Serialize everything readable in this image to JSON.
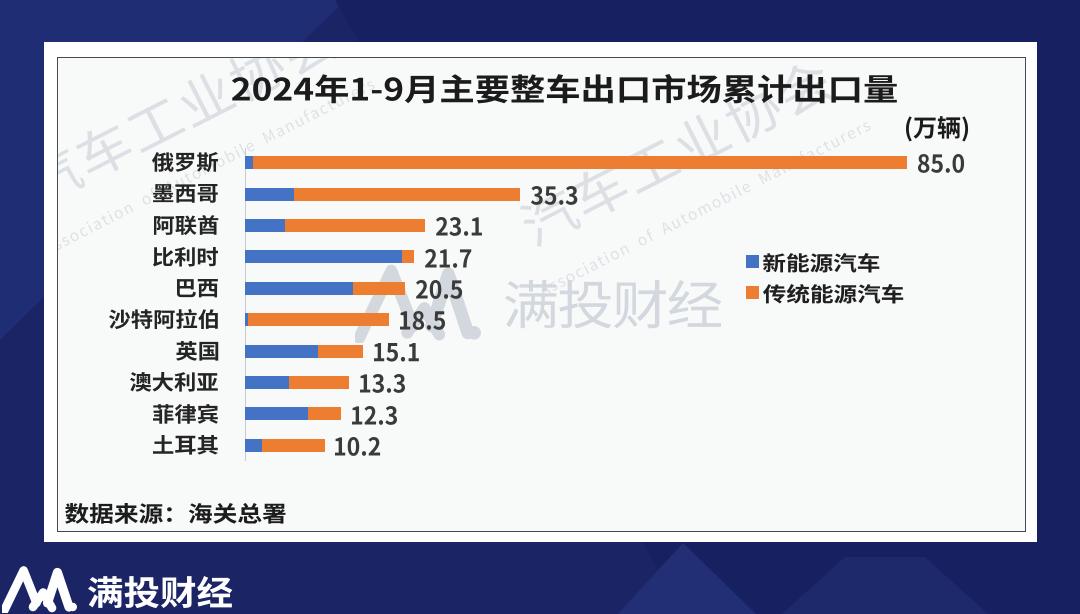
{
  "page": {
    "background_color": "#1b2465",
    "card_color": "#ffffff"
  },
  "chart_data": {
    "type": "bar",
    "orientation": "horizontal",
    "stacked": true,
    "title": "2024年1-9月主要整车出口市场累计出口量",
    "unit_label": "(万辆)",
    "categories": [
      "俄罗斯",
      "墨西哥",
      "阿联酋",
      "比利时",
      "巴西",
      "沙特阿拉伯",
      "英国",
      "澳大利亚",
      "菲律宾",
      "土耳其"
    ],
    "totals": [
      85.0,
      35.3,
      23.1,
      21.7,
      20.5,
      18.5,
      15.1,
      13.3,
      12.3,
      10.2
    ],
    "total_labels": [
      "85.0",
      "35.3",
      "23.1",
      "21.7",
      "20.5",
      "18.5",
      "15.1",
      "13.3",
      "12.3",
      "10.2"
    ],
    "series_names": [
      "新能源汽车",
      "传统能源汽车"
    ],
    "series": [
      {
        "name": "新能源汽车",
        "color": "#4472c4",
        "values": [
          1.0,
          6.2,
          5.1,
          20.1,
          13.8,
          0.4,
          9.3,
          5.6,
          8.0,
          2.2
        ]
      },
      {
        "name": "传统能源汽车",
        "color": "#ed7d31",
        "values": [
          84.0,
          29.1,
          18.0,
          1.6,
          6.7,
          18.1,
          5.8,
          7.7,
          4.3,
          8.0
        ]
      }
    ],
    "xlim": [
      0,
      90
    ],
    "grid": false,
    "legend_position": "right-middle"
  },
  "source_note": "数据来源：海关总署",
  "watermarks": {
    "diagonal_cn": "汽车工业协会",
    "diagonal_en": "Association of Automobile Manufacturers",
    "center_brand": "满投财经"
  },
  "footer": {
    "brand": "满投财经",
    "logo": "mantou-m-logo"
  }
}
